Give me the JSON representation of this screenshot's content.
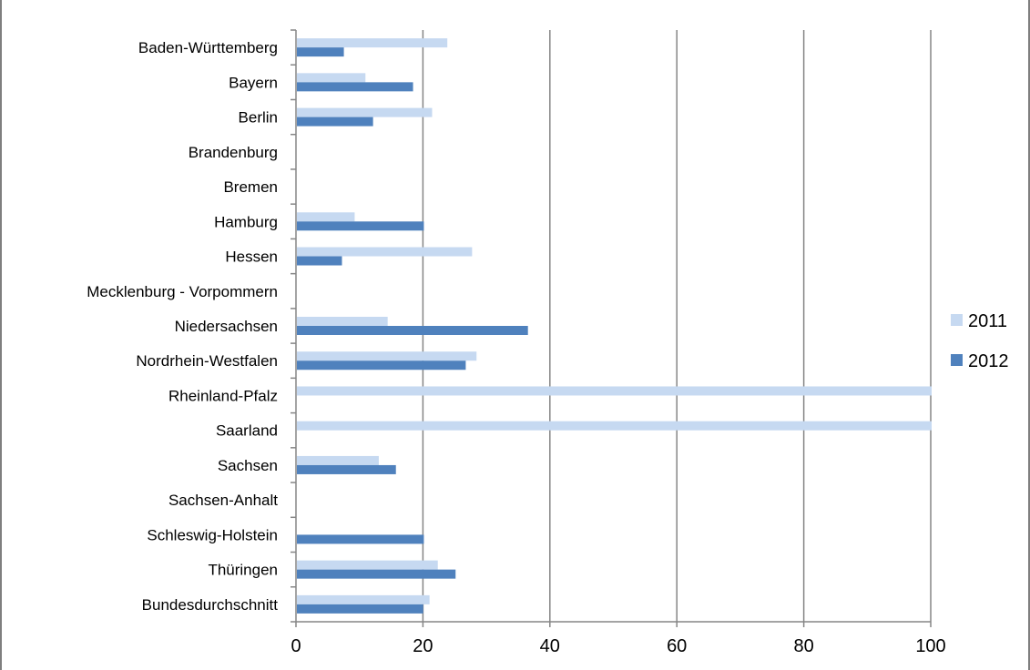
{
  "chart_data": {
    "type": "bar",
    "orientation": "horizontal",
    "title": "",
    "xlabel": "",
    "ylabel": "",
    "categories": [
      "Baden-Württemberg",
      "Bayern",
      "Berlin",
      "Brandenburg",
      "Bremen",
      "Hamburg",
      "Hessen",
      "Mecklenburg - Vorpommern",
      "Niedersachsen",
      "Nordrhein-Westfalen",
      "Rheinland-Pfalz",
      "Saarland",
      "Sachsen",
      "Sachsen-Anhalt",
      "Schleswig-Holstein",
      "Thüringen",
      "Bundesdurchschnitt"
    ],
    "series": [
      {
        "name": "2011",
        "color": "#c6d9f1",
        "values": [
          23.7,
          10.8,
          21.3,
          null,
          null,
          9.1,
          27.6,
          null,
          14.3,
          28.3,
          100,
          100,
          12.9,
          null,
          null,
          22.2,
          20.9
        ]
      },
      {
        "name": "2012",
        "color": "#4f81bd",
        "values": [
          7.4,
          18.3,
          12.0,
          null,
          null,
          20.0,
          7.1,
          null,
          36.4,
          26.6,
          null,
          null,
          15.6,
          null,
          20.0,
          25.0,
          19.9
        ]
      }
    ],
    "xlim": [
      0,
      100
    ],
    "xticks": [
      0,
      20,
      40,
      60,
      80,
      100
    ],
    "grid": "vertical major gridlines",
    "legend_position": "right"
  }
}
